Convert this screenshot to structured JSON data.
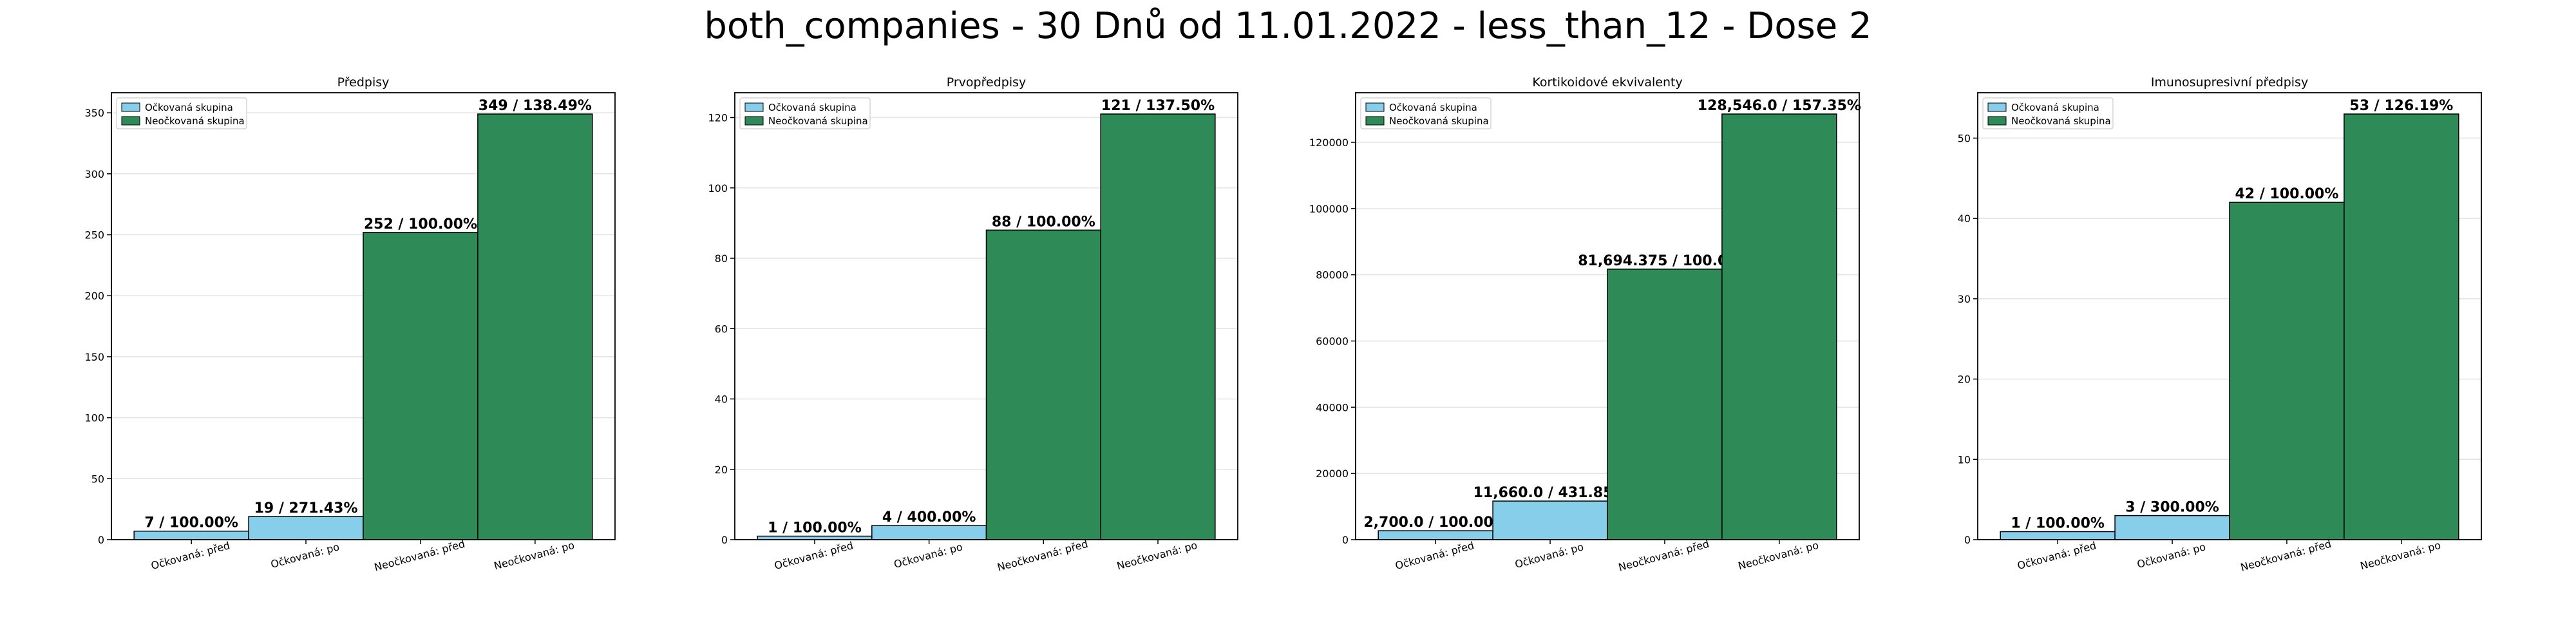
{
  "suptitle": "both_companies - 30 Dnů od 11.01.2022 - less_than_12 - Dose 2",
  "colors": {
    "vaccinated": "#87CEEB",
    "unvaccinated": "#2E8B57"
  },
  "legend": [
    "Očkovaná skupina",
    "Neočkovaná skupina"
  ],
  "chart_data": [
    {
      "type": "bar",
      "title": "Předpisy",
      "categories": [
        "Očkovaná: před",
        "Očkovaná: po",
        "Neočkovaná: před",
        "Neočkovaná: po"
      ],
      "values": [
        7,
        19,
        252,
        349
      ],
      "labels": [
        "7 / 100.00%",
        "19 / 271.43%",
        "252 / 100.00%",
        "349 / 138.49%"
      ],
      "ylim": [
        0,
        366.45
      ],
      "yticks": [
        0,
        50,
        100,
        150,
        200,
        250,
        300,
        350
      ],
      "ytick_labels": [
        "0",
        "50",
        "100",
        "150",
        "200",
        "250",
        "300",
        "350"
      ],
      "grid": true,
      "legend_position": "upper-left"
    },
    {
      "type": "bar",
      "title": "Prvopředpisy",
      "categories": [
        "Očkovaná: před",
        "Očkovaná: po",
        "Neočkovaná: před",
        "Neočkovaná: po"
      ],
      "values": [
        1,
        4,
        88,
        121
      ],
      "labels": [
        "1 / 100.00%",
        "4 / 400.00%",
        "88 / 100.00%",
        "121 / 137.50%"
      ],
      "ylim": [
        0,
        127.05
      ],
      "yticks": [
        0,
        20,
        40,
        60,
        80,
        100,
        120
      ],
      "ytick_labels": [
        "0",
        "20",
        "40",
        "60",
        "80",
        "100",
        "120"
      ],
      "grid": true,
      "legend_position": "upper-left"
    },
    {
      "type": "bar",
      "title": "Kortikoidové ekvivalenty",
      "categories": [
        "Očkovaná: před",
        "Očkovaná: po",
        "Neočkovaná: před",
        "Neočkovaná: po"
      ],
      "values": [
        2700.0,
        11660.0,
        81694.375,
        128546.0
      ],
      "labels": [
        "2,700.0 / 100.00%",
        "11,660.0 / 431.85%",
        "81,694.375 / 100.00%",
        "128,546.0 / 157.35%"
      ],
      "ylim": [
        0,
        134973
      ],
      "yticks": [
        0,
        20000,
        40000,
        60000,
        80000,
        100000,
        120000
      ],
      "ytick_labels": [
        "0",
        "20000",
        "40000",
        "60000",
        "80000",
        "100000",
        "120000"
      ],
      "grid": true,
      "legend_position": "upper-left"
    },
    {
      "type": "bar",
      "title": "Imunosupresivní předpisy",
      "categories": [
        "Očkovaná: před",
        "Očkovaná: po",
        "Neočkovaná: před",
        "Neočkovaná: po"
      ],
      "values": [
        1,
        3,
        42,
        53
      ],
      "labels": [
        "1 / 100.00%",
        "3 / 300.00%",
        "42 / 100.00%",
        "53 / 126.19%"
      ],
      "ylim": [
        0,
        55.65
      ],
      "yticks": [
        0,
        10,
        20,
        30,
        40,
        50
      ],
      "ytick_labels": [
        "0",
        "10",
        "20",
        "30",
        "40",
        "50"
      ],
      "grid": true,
      "legend_position": "upper-left"
    }
  ]
}
